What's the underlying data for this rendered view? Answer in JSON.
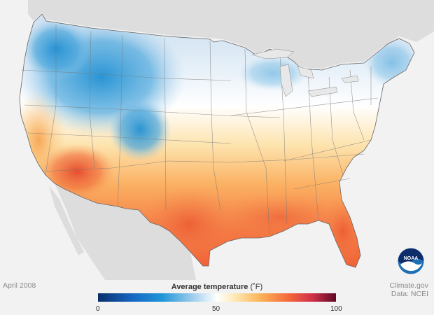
{
  "map": {
    "date": "April 2008",
    "legend": {
      "title": "Average temperature",
      "unit": "(˚F)",
      "ticks": [
        "0",
        "50",
        "100"
      ],
      "range": [
        0,
        100
      ],
      "colors": [
        "#08306b",
        "#2196d8",
        "#ffffff",
        "#fbb45a",
        "#f46a3c",
        "#5e0a24"
      ]
    },
    "credits": {
      "site": "Climate.gov",
      "source": "Data: NCEI"
    },
    "logo": "NOAA"
  }
}
